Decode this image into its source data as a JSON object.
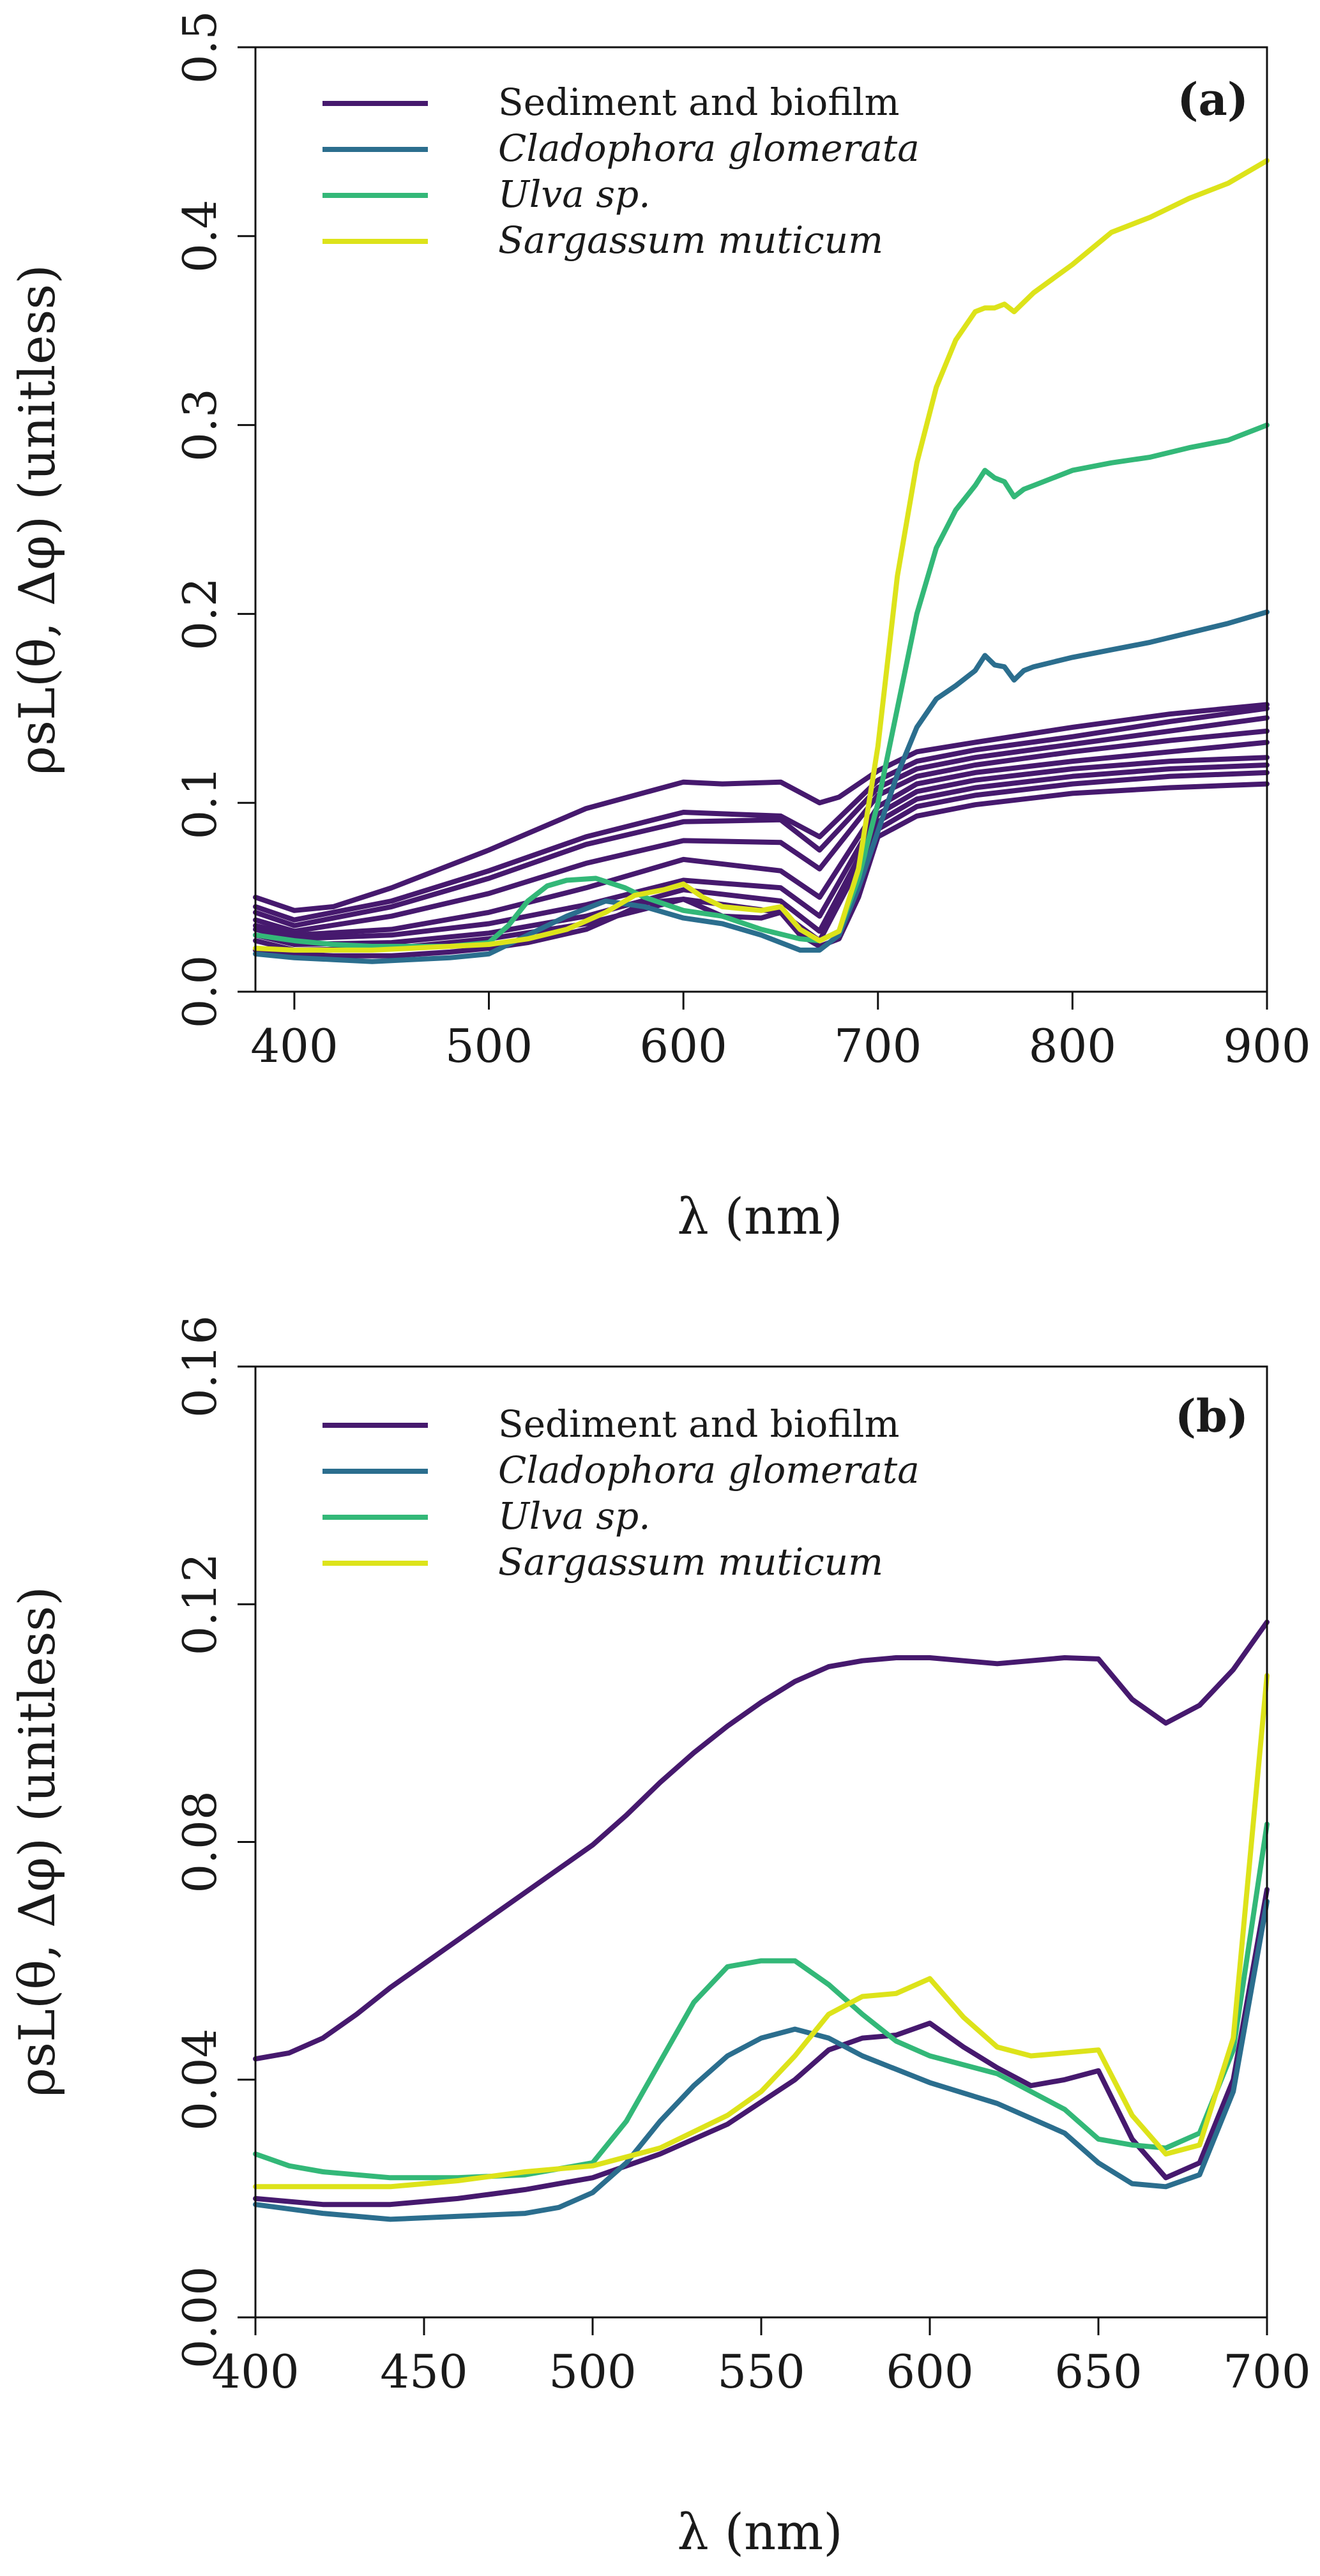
{
  "colors": {
    "sediment": "#46196e",
    "cladophora": "#2b6e8e",
    "ulva": "#33b878",
    "sargassum": "#dde31a"
  },
  "legend_labels": [
    "Sediment and biofilm",
    "Cladophora glomerata",
    "Ulva sp.",
    "Sargassum muticum"
  ],
  "chart_data": [
    {
      "type": "line",
      "panel": "(a)",
      "title": "",
      "xlabel": "λ (nm)",
      "ylabel": "ρsL(θ, Δφ) (unitless)",
      "xlim": [
        380,
        900
      ],
      "ylim": [
        0,
        0.5
      ],
      "xticks": [
        "400",
        "500",
        "600",
        "700",
        "800",
        "900"
      ],
      "yticks": [
        "0.0",
        "0.1",
        "0.2",
        "0.3",
        "0.4",
        "0.5"
      ],
      "legend": "top-left",
      "series": [
        {
          "name": "Sediment and biofilm",
          "group": "sediment",
          "x": [
            380,
            400,
            420,
            450,
            500,
            550,
            600,
            620,
            650,
            670,
            680,
            700,
            720,
            750,
            800,
            850,
            900
          ],
          "y": [
            0.05,
            0.043,
            0.045,
            0.055,
            0.075,
            0.097,
            0.111,
            0.11,
            0.111,
            0.1,
            0.103,
            0.117,
            0.127,
            0.132,
            0.14,
            0.147,
            0.152
          ]
        },
        {
          "name": "Sediment and biofilm",
          "group": "sediment",
          "x": [
            380,
            400,
            450,
            500,
            550,
            600,
            650,
            670,
            700,
            720,
            750,
            800,
            850,
            900
          ],
          "y": [
            0.045,
            0.038,
            0.048,
            0.064,
            0.082,
            0.095,
            0.093,
            0.082,
            0.112,
            0.122,
            0.128,
            0.135,
            0.143,
            0.15
          ]
        },
        {
          "name": "Sediment and biofilm",
          "group": "sediment",
          "x": [
            380,
            400,
            450,
            500,
            550,
            600,
            650,
            670,
            700,
            720,
            750,
            800,
            850,
            900
          ],
          "y": [
            0.042,
            0.035,
            0.045,
            0.06,
            0.078,
            0.09,
            0.091,
            0.075,
            0.108,
            0.118,
            0.124,
            0.131,
            0.138,
            0.145
          ]
        },
        {
          "name": "Sediment and biofilm",
          "group": "sediment",
          "x": [
            380,
            400,
            450,
            500,
            550,
            600,
            650,
            670,
            700,
            720,
            750,
            800,
            850,
            900
          ],
          "y": [
            0.038,
            0.032,
            0.04,
            0.052,
            0.068,
            0.08,
            0.079,
            0.065,
            0.104,
            0.114,
            0.12,
            0.127,
            0.133,
            0.138
          ]
        },
        {
          "name": "Sediment and biofilm",
          "group": "sediment",
          "x": [
            380,
            400,
            450,
            500,
            550,
            600,
            650,
            670,
            700,
            720,
            750,
            800,
            850,
            900
          ],
          "y": [
            0.035,
            0.03,
            0.033,
            0.042,
            0.055,
            0.07,
            0.064,
            0.05,
            0.098,
            0.11,
            0.116,
            0.122,
            0.127,
            0.132
          ]
        },
        {
          "name": "Sediment and biofilm",
          "group": "sediment",
          "x": [
            380,
            400,
            450,
            500,
            550,
            600,
            650,
            670,
            700,
            720,
            750,
            800,
            850,
            900
          ],
          "y": [
            0.033,
            0.028,
            0.03,
            0.036,
            0.046,
            0.059,
            0.055,
            0.04,
            0.094,
            0.106,
            0.112,
            0.118,
            0.122,
            0.124
          ]
        },
        {
          "name": "Sediment and biofilm",
          "group": "sediment",
          "x": [
            380,
            400,
            450,
            500,
            550,
            600,
            650,
            670,
            700,
            720,
            750,
            800,
            850,
            900
          ],
          "y": [
            0.03,
            0.025,
            0.026,
            0.031,
            0.04,
            0.054,
            0.048,
            0.032,
            0.09,
            0.102,
            0.108,
            0.114,
            0.118,
            0.12
          ]
        },
        {
          "name": "Sediment and biofilm",
          "group": "sediment",
          "x": [
            380,
            400,
            450,
            500,
            550,
            600,
            650,
            670,
            700,
            720,
            750,
            800,
            850,
            900
          ],
          "y": [
            0.027,
            0.022,
            0.023,
            0.028,
            0.036,
            0.049,
            0.042,
            0.027,
            0.086,
            0.098,
            0.104,
            0.11,
            0.114,
            0.116
          ]
        },
        {
          "name": "Sediment and biofilm",
          "group": "sediment",
          "x": [
            380,
            400,
            420,
            450,
            480,
            500,
            520,
            550,
            570,
            580,
            600,
            620,
            640,
            650,
            660,
            670,
            680,
            690,
            700,
            720,
            750,
            800,
            850,
            900
          ],
          "y": [
            0.022,
            0.02,
            0.019,
            0.019,
            0.021,
            0.023,
            0.026,
            0.033,
            0.042,
            0.047,
            0.049,
            0.04,
            0.039,
            0.042,
            0.03,
            0.024,
            0.028,
            0.05,
            0.082,
            0.093,
            0.099,
            0.105,
            0.108,
            0.11
          ]
        },
        {
          "name": "Cladophora glomerata",
          "group": "cladophora",
          "x": [
            380,
            400,
            420,
            440,
            460,
            480,
            500,
            520,
            540,
            560,
            580,
            600,
            620,
            640,
            660,
            670,
            680,
            690,
            700,
            710,
            720,
            730,
            740,
            750,
            755,
            760,
            765,
            770,
            775,
            780,
            800,
            820,
            840,
            860,
            880,
            900
          ],
          "y": [
            0.02,
            0.018,
            0.017,
            0.016,
            0.017,
            0.018,
            0.02,
            0.03,
            0.04,
            0.048,
            0.045,
            0.039,
            0.036,
            0.03,
            0.022,
            0.022,
            0.03,
            0.055,
            0.085,
            0.115,
            0.14,
            0.155,
            0.162,
            0.17,
            0.178,
            0.173,
            0.172,
            0.165,
            0.17,
            0.172,
            0.177,
            0.181,
            0.185,
            0.19,
            0.195,
            0.201
          ]
        },
        {
          "name": "Ulva sp.",
          "group": "ulva",
          "x": [
            380,
            400,
            420,
            440,
            460,
            480,
            500,
            510,
            520,
            530,
            540,
            555,
            570,
            580,
            600,
            620,
            640,
            660,
            670,
            680,
            690,
            700,
            710,
            720,
            730,
            740,
            750,
            755,
            760,
            765,
            770,
            775,
            780,
            800,
            820,
            840,
            860,
            880,
            900
          ],
          "y": [
            0.03,
            0.027,
            0.025,
            0.024,
            0.024,
            0.024,
            0.026,
            0.035,
            0.048,
            0.056,
            0.059,
            0.06,
            0.055,
            0.05,
            0.043,
            0.04,
            0.033,
            0.028,
            0.027,
            0.032,
            0.06,
            0.1,
            0.15,
            0.2,
            0.235,
            0.255,
            0.268,
            0.276,
            0.272,
            0.27,
            0.262,
            0.266,
            0.268,
            0.276,
            0.28,
            0.283,
            0.288,
            0.292,
            0.3
          ]
        },
        {
          "name": "Sargassum muticum",
          "group": "sargassum",
          "x": [
            380,
            400,
            420,
            440,
            460,
            480,
            500,
            520,
            540,
            560,
            575,
            590,
            600,
            610,
            620,
            640,
            650,
            660,
            670,
            680,
            690,
            700,
            710,
            720,
            730,
            740,
            750,
            755,
            760,
            765,
            770,
            780,
            800,
            820,
            840,
            860,
            880,
            900
          ],
          "y": [
            0.023,
            0.022,
            0.022,
            0.022,
            0.023,
            0.024,
            0.025,
            0.028,
            0.033,
            0.042,
            0.051,
            0.054,
            0.057,
            0.05,
            0.045,
            0.043,
            0.045,
            0.033,
            0.027,
            0.032,
            0.065,
            0.13,
            0.22,
            0.28,
            0.32,
            0.345,
            0.36,
            0.362,
            0.362,
            0.364,
            0.36,
            0.37,
            0.385,
            0.402,
            0.41,
            0.42,
            0.428,
            0.44
          ]
        }
      ]
    },
    {
      "type": "line",
      "panel": "(b)",
      "title": "",
      "xlabel": "λ (nm)",
      "ylabel": "ρsL(θ, Δφ) (unitless)",
      "xlim": [
        400,
        700
      ],
      "ylim": [
        0,
        0.16
      ],
      "xticks": [
        "400",
        "450",
        "500",
        "550",
        "600",
        "650",
        "700"
      ],
      "yticks": [
        "0.00",
        "0.04",
        "0.08",
        "0.12",
        "0.16"
      ],
      "legend": "top-left",
      "series": [
        {
          "name": "Sediment and biofilm",
          "group": "sediment",
          "x": [
            400,
            410,
            420,
            430,
            440,
            450,
            460,
            470,
            480,
            490,
            500,
            510,
            520,
            530,
            540,
            550,
            560,
            570,
            580,
            590,
            600,
            610,
            620,
            630,
            640,
            650,
            660,
            670,
            680,
            690,
            700
          ],
          "y": [
            0.0435,
            0.0445,
            0.047,
            0.051,
            0.0555,
            0.0595,
            0.0635,
            0.0675,
            0.0715,
            0.0755,
            0.0795,
            0.0845,
            0.09,
            0.095,
            0.0995,
            0.1035,
            0.107,
            0.1095,
            0.1105,
            0.111,
            0.111,
            0.1105,
            0.11,
            0.1105,
            0.111,
            0.1108,
            0.104,
            0.1,
            0.103,
            0.109,
            0.117
          ]
        },
        {
          "name": "Sediment and biofilm",
          "group": "sediment",
          "x": [
            400,
            420,
            440,
            460,
            480,
            500,
            520,
            540,
            560,
            570,
            580,
            590,
            600,
            610,
            620,
            630,
            640,
            650,
            660,
            670,
            680,
            690,
            700
          ],
          "y": [
            0.02,
            0.019,
            0.019,
            0.02,
            0.0215,
            0.0235,
            0.0275,
            0.0325,
            0.04,
            0.045,
            0.047,
            0.0475,
            0.0495,
            0.0455,
            0.042,
            0.039,
            0.04,
            0.0415,
            0.03,
            0.0235,
            0.026,
            0.04,
            0.072
          ]
        },
        {
          "name": "Cladophora glomerata",
          "group": "cladophora",
          "x": [
            400,
            420,
            440,
            460,
            480,
            490,
            500,
            510,
            520,
            530,
            540,
            550,
            560,
            570,
            580,
            600,
            620,
            640,
            650,
            660,
            670,
            680,
            690,
            700
          ],
          "y": [
            0.019,
            0.0175,
            0.0165,
            0.017,
            0.0175,
            0.0185,
            0.021,
            0.026,
            0.033,
            0.039,
            0.044,
            0.047,
            0.0485,
            0.047,
            0.044,
            0.0395,
            0.036,
            0.031,
            0.026,
            0.0225,
            0.022,
            0.024,
            0.038,
            0.07
          ]
        },
        {
          "name": "Ulva sp.",
          "group": "ulva",
          "x": [
            400,
            410,
            420,
            440,
            460,
            480,
            500,
            510,
            520,
            530,
            540,
            550,
            560,
            570,
            580,
            590,
            600,
            620,
            640,
            650,
            660,
            670,
            680,
            690,
            700
          ],
          "y": [
            0.0275,
            0.0255,
            0.0245,
            0.0235,
            0.0235,
            0.024,
            0.026,
            0.033,
            0.043,
            0.053,
            0.059,
            0.06,
            0.06,
            0.056,
            0.051,
            0.0465,
            0.044,
            0.041,
            0.035,
            0.03,
            0.029,
            0.0285,
            0.031,
            0.045,
            0.083
          ]
        },
        {
          "name": "Sargassum muticum",
          "group": "sargassum",
          "x": [
            400,
            420,
            440,
            460,
            480,
            500,
            520,
            540,
            550,
            560,
            570,
            580,
            590,
            600,
            610,
            620,
            630,
            640,
            650,
            660,
            670,
            680,
            690,
            700
          ],
          "y": [
            0.022,
            0.022,
            0.022,
            0.023,
            0.0245,
            0.0255,
            0.0285,
            0.034,
            0.038,
            0.044,
            0.051,
            0.054,
            0.0545,
            0.057,
            0.0505,
            0.0455,
            0.044,
            0.0445,
            0.045,
            0.034,
            0.0275,
            0.029,
            0.047,
            0.108
          ]
        }
      ]
    }
  ]
}
